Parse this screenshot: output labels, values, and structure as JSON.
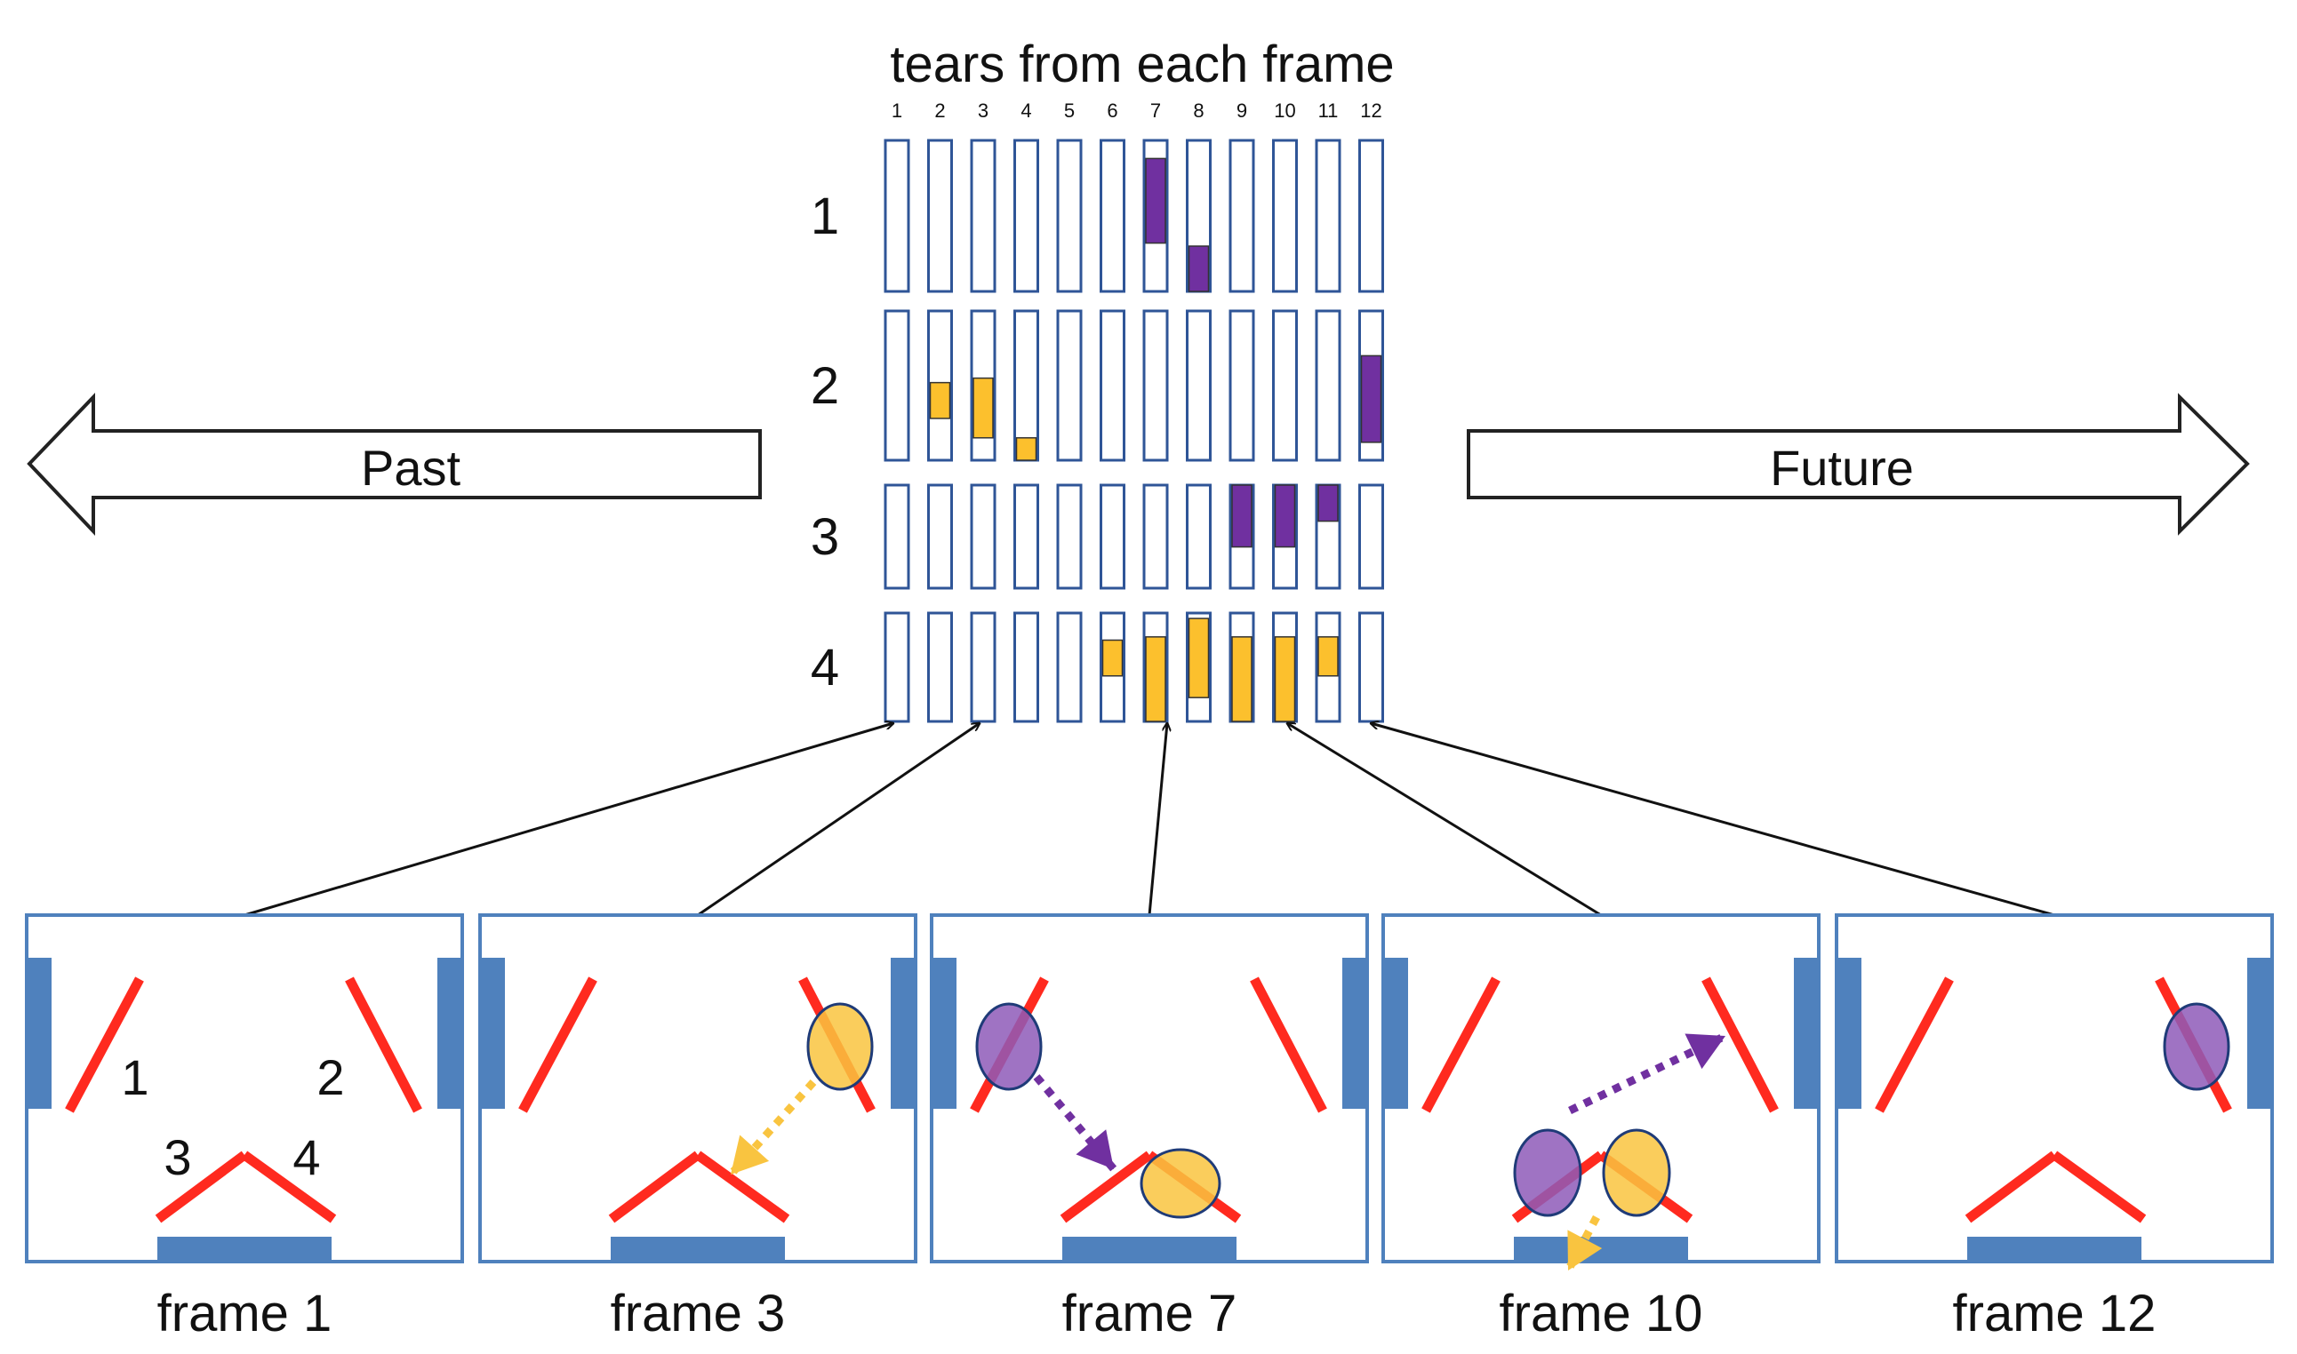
{
  "header": {
    "title": "tears from each frame"
  },
  "columns": [
    "1",
    "2",
    "3",
    "4",
    "5",
    "6",
    "7",
    "8",
    "9",
    "10",
    "11",
    "12"
  ],
  "rows": [
    {
      "label": "1",
      "bars": [
        {
          "col": 7,
          "from": 0.12,
          "to": 0.68,
          "color": "purple"
        },
        {
          "col": 8,
          "from": 0.7,
          "to": 1.0,
          "color": "purple"
        }
      ]
    },
    {
      "label": "2",
      "bars": [
        {
          "col": 2,
          "from": 0.48,
          "to": 0.72,
          "color": "orange"
        },
        {
          "col": 3,
          "from": 0.45,
          "to": 0.85,
          "color": "orange"
        },
        {
          "col": 4,
          "from": 0.85,
          "to": 1.0,
          "color": "orange"
        },
        {
          "col": 12,
          "from": 0.3,
          "to": 0.88,
          "color": "purple"
        }
      ]
    },
    {
      "label": "3",
      "bars": [
        {
          "col": 9,
          "from": 0.0,
          "to": 0.6,
          "color": "purple"
        },
        {
          "col": 10,
          "from": 0.0,
          "to": 0.6,
          "color": "purple"
        },
        {
          "col": 11,
          "from": 0.0,
          "to": 0.35,
          "color": "purple"
        }
      ]
    },
    {
      "label": "4",
      "bars": [
        {
          "col": 6,
          "from": 0.25,
          "to": 0.58,
          "color": "orange"
        },
        {
          "col": 7,
          "from": 0.22,
          "to": 1.0,
          "color": "orange"
        },
        {
          "col": 8,
          "from": 0.05,
          "to": 0.78,
          "color": "orange"
        },
        {
          "col": 9,
          "from": 0.22,
          "to": 1.0,
          "color": "orange"
        },
        {
          "col": 10,
          "from": 0.22,
          "to": 1.0,
          "color": "orange"
        },
        {
          "col": 11,
          "from": 0.22,
          "to": 0.58,
          "color": "orange"
        }
      ]
    }
  ],
  "arrows": {
    "past": "Past",
    "future": "Future"
  },
  "frames": [
    {
      "label": "frame 1",
      "source_col": 1,
      "mirror_labels": [
        "1",
        "2",
        "3",
        "4"
      ]
    },
    {
      "label": "frame 3",
      "source_col": 3
    },
    {
      "label": "frame 7",
      "source_col": 7
    },
    {
      "label": "frame 10",
      "source_col": 10
    },
    {
      "label": "frame 12",
      "source_col": 12
    }
  ],
  "colors": {
    "grid_stroke": "#2f5597",
    "purple": "#7030a0",
    "orange": "#fcc02d",
    "mirror": "#ff2a1f",
    "wall": "#4f81bd",
    "blob_purple": "#8e5bb8",
    "blob_orange": "#f9c440",
    "blob_edge": "#1f3b78"
  }
}
